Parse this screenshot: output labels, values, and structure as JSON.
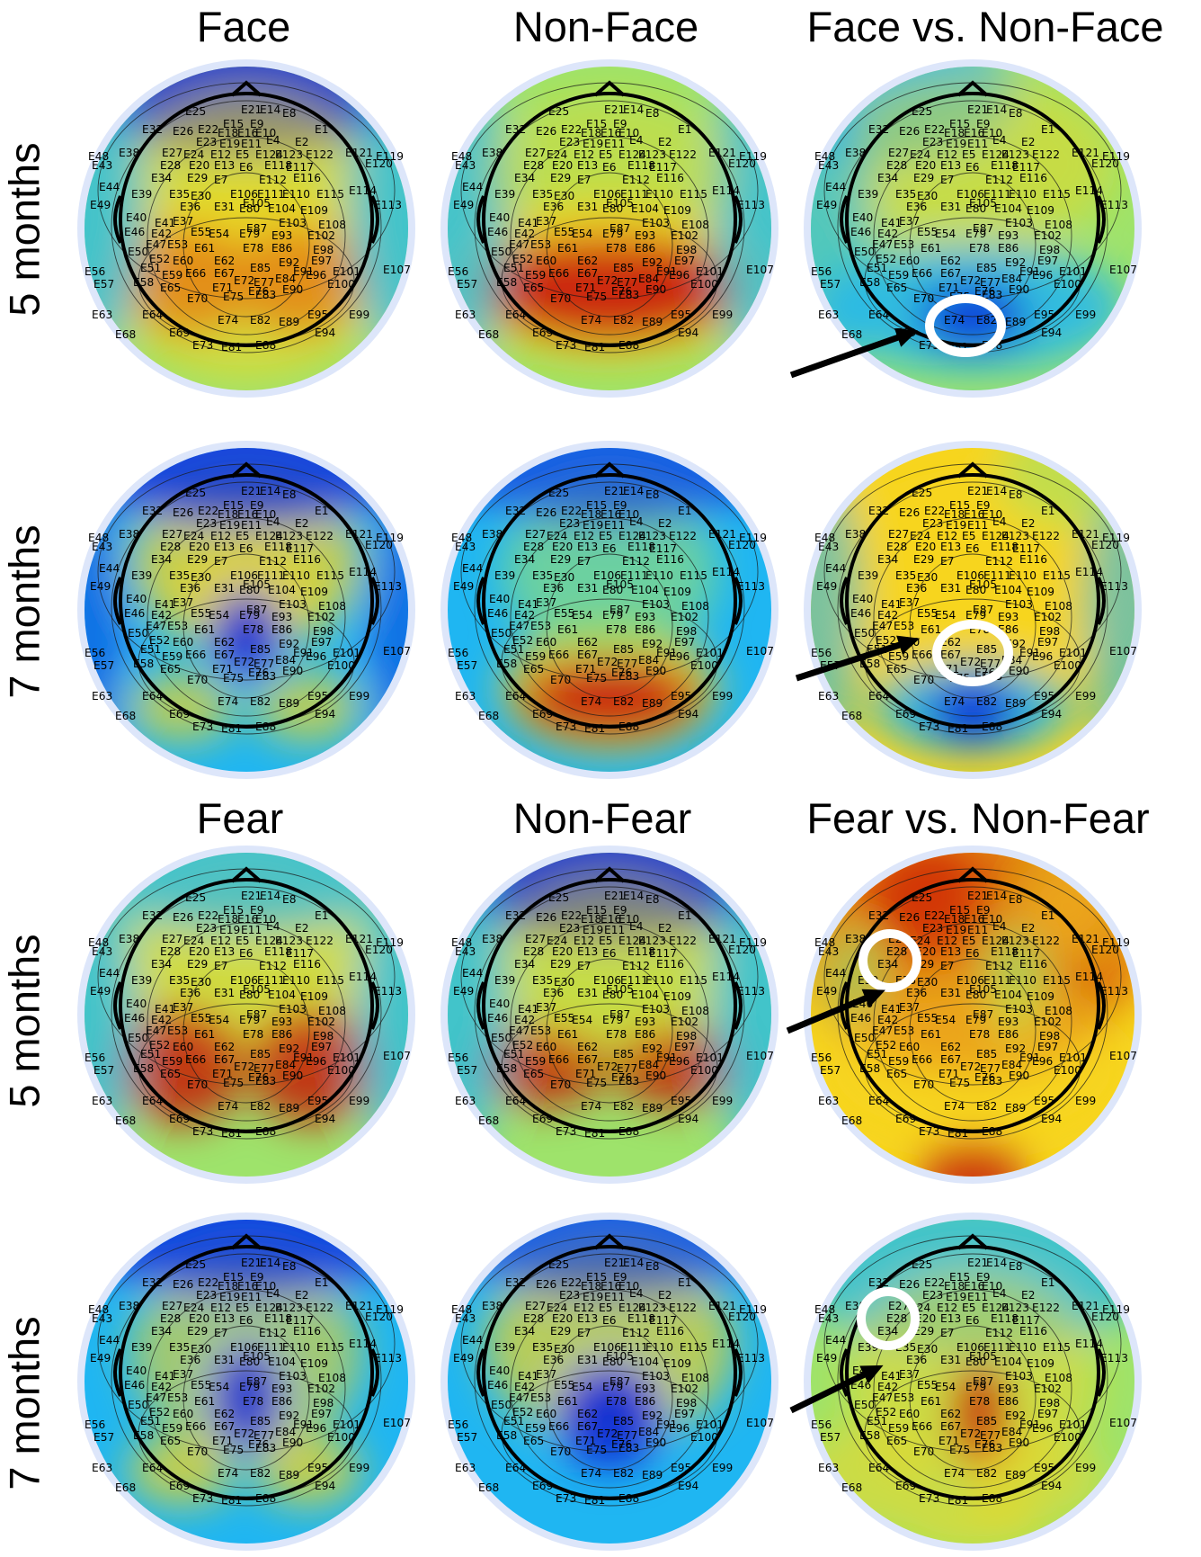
{
  "headers": {
    "top": [
      "Face",
      "Non-Face",
      "Face vs. Non-Face"
    ],
    "bottom": [
      "Fear",
      "Non-Fear",
      "Fear vs. Non-Fear"
    ]
  },
  "row_labels": [
    "5 months",
    "7 months",
    "5 months",
    "7 months"
  ],
  "electrode_labels": [
    "E25",
    "E21",
    "E14",
    "E8",
    "E32",
    "E26",
    "E22",
    "E15",
    "E9",
    "E1",
    "E18",
    "E16",
    "E10",
    "E23",
    "E19",
    "E11",
    "E4",
    "E2",
    "E48",
    "E38",
    "E27",
    "E24",
    "E12",
    "E5",
    "E124",
    "E123",
    "E122",
    "E121",
    "E119",
    "E43",
    "E28",
    "E20",
    "E13",
    "E6",
    "E118",
    "E117",
    "E120",
    "E34",
    "E29",
    "E7",
    "E112",
    "E116",
    "E44",
    "E39",
    "E35",
    "E30",
    "E106",
    "E111",
    "E105",
    "E110",
    "E115",
    "E114",
    "E49",
    "E36",
    "E31",
    "E80",
    "E104",
    "E109",
    "E113",
    "E40",
    "E41",
    "E37",
    "E55",
    "E87",
    "E103",
    "E108",
    "E46",
    "E42",
    "E54",
    "E79",
    "E93",
    "E102",
    "E47",
    "E53",
    "E61",
    "E78",
    "E86",
    "E98",
    "E56",
    "E50",
    "E52",
    "E60",
    "E62",
    "E85",
    "E92",
    "E97",
    "E101",
    "E107",
    "E57",
    "E51",
    "E59",
    "E66",
    "E67",
    "E72",
    "E77",
    "E84",
    "E91",
    "E96",
    "E100",
    "E58",
    "E65",
    "E71",
    "E76",
    "E90",
    "E63",
    "E64",
    "E70",
    "E75",
    "E83",
    "E95",
    "E99",
    "E68",
    "E69",
    "E74",
    "E82",
    "E89",
    "E94",
    "E73",
    "E81",
    "E88"
  ],
  "maps": [
    {
      "id": "face-5m",
      "title": "Face"
    },
    {
      "id": "nonface-5m",
      "title": "Non-Face"
    },
    {
      "id": "facediff-5m",
      "title": "Face vs. Non-Face"
    },
    {
      "id": "face-7m",
      "title": "Face"
    },
    {
      "id": "nonface-7m",
      "title": "Non-Face"
    },
    {
      "id": "facediff-7m",
      "title": "Face vs. Non-Face"
    },
    {
      "id": "fear-5m",
      "title": "Fear"
    },
    {
      "id": "nonfear-5m",
      "title": "Non-Fear"
    },
    {
      "id": "feardiff-5m",
      "title": "Fear vs. Non-Fear"
    },
    {
      "id": "fear-7m",
      "title": "Fear"
    },
    {
      "id": "nonfear-7m",
      "title": "Non-Fear"
    },
    {
      "id": "feardiff-7m",
      "title": "Fear vs. Non-Fear"
    }
  ],
  "colors": {
    "low": "#0b2ad8",
    "mid_low": "#1fb6f2",
    "mid": "#9ee36b",
    "mid_high": "#f7d51d",
    "high": "#c81408",
    "background": "#ffffff"
  }
}
